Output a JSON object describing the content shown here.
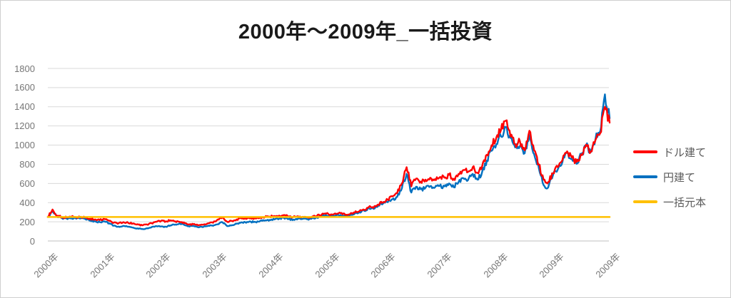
{
  "title": "2000年〜2009年_一括投資",
  "colors": {
    "dollar": "#ff0000",
    "yen": "#0070c0",
    "principal": "#ffc000",
    "grid": "#d9d9d9",
    "baseline": "#bfbfbf",
    "axis_text": "#767676",
    "title_text": "#1a1a1a"
  },
  "legend": {
    "items": [
      {
        "label": "ドル建て",
        "series_key": "dollar"
      },
      {
        "label": "円建て",
        "series_key": "yen"
      },
      {
        "label": "一括元本",
        "series_key": "principal"
      }
    ],
    "position": "right"
  },
  "chart_data": {
    "type": "line",
    "title": "2000年〜2009年_一括投資",
    "xlabel": "",
    "ylabel": "",
    "ylim": [
      0,
      1800
    ],
    "y_tick_step": 200,
    "y_tick_labels": [
      "0",
      "200",
      "400",
      "600",
      "800",
      "1000",
      "1200",
      "1400",
      "1600",
      "1800"
    ],
    "x_tick_labels": [
      "2000年",
      "2001年",
      "2002年",
      "2003年",
      "2004年",
      "2005年",
      "2006年",
      "2007年",
      "2008年",
      "2009年",
      "2009年"
    ],
    "x_resolution": "monthly, Jan 2000 - Dec 2009, 120 points per series",
    "grid": "horizontal-only",
    "legend_position": "right",
    "series": [
      {
        "name": "ドル建て",
        "color": "#ff0000",
        "values": [
          250,
          328,
          262,
          250,
          245,
          252,
          248,
          252,
          242,
          232,
          225,
          218,
          228,
          210,
          192,
          185,
          196,
          190,
          182,
          175,
          163,
          172,
          185,
          200,
          210,
          205,
          215,
          205,
          198,
          185,
          172,
          178,
          165,
          172,
          185,
          190,
          225,
          245,
          200,
          210,
          225,
          235,
          230,
          240,
          235,
          245,
          250,
          255,
          260,
          265,
          270,
          255,
          250,
          258,
          252,
          248,
          255,
          262,
          275,
          285,
          278,
          285,
          290,
          272,
          280,
          295,
          310,
          325,
          355,
          345,
          380,
          405,
          430,
          465,
          500,
          600,
          770,
          570,
          650,
          620,
          640,
          660,
          645,
          665,
          660,
          690,
          650,
          700,
          740,
          720,
          770,
          710,
          780,
          900,
          1000,
          1080,
          1160,
          1255,
          1090,
          1010,
          1040,
          945,
          1150,
          945,
          800,
          640,
          615,
          705,
          770,
          845,
          935,
          870,
          825,
          905,
          1005,
          935,
          1055,
          1125,
          1400,
          1235
        ]
      },
      {
        "name": "円建て",
        "color": "#0070c0",
        "values": [
          250,
          310,
          250,
          238,
          232,
          238,
          232,
          236,
          226,
          214,
          205,
          196,
          204,
          185,
          160,
          150,
          158,
          148,
          140,
          132,
          125,
          133,
          145,
          155,
          152,
          148,
          162,
          172,
          180,
          165,
          150,
          155,
          142,
          148,
          160,
          158,
          175,
          195,
          155,
          165,
          180,
          195,
          190,
          200,
          198,
          210,
          215,
          220,
          225,
          232,
          240,
          228,
          225,
          235,
          230,
          228,
          238,
          245,
          258,
          268,
          262,
          270,
          272,
          258,
          268,
          285,
          300,
          315,
          345,
          335,
          370,
          390,
          405,
          435,
          460,
          550,
          700,
          505,
          565,
          540,
          555,
          572,
          558,
          575,
          570,
          600,
          560,
          615,
          655,
          635,
          700,
          640,
          720,
          840,
          940,
          1010,
          1090,
          1185,
          1075,
          975,
          990,
          915,
          1105,
          905,
          760,
          585,
          560,
          685,
          745,
          825,
          920,
          855,
          805,
          895,
          995,
          925,
          1065,
          1145,
          1530,
          1280
        ]
      },
      {
        "name": "一括元本",
        "color": "#ffc000",
        "constant_value": 250
      }
    ],
    "render": {
      "jitter_subdivisions": 5,
      "jitter_fraction": 0.04,
      "seed": 7
    }
  }
}
